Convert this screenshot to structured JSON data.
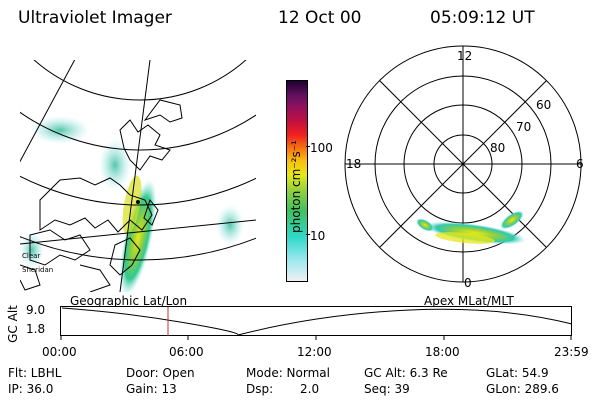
{
  "header": {
    "instrument": "Ultraviolet Imager",
    "date": "12 Oct 00",
    "time": "05:09:12 UT"
  },
  "colorbar": {
    "unit_label": "photon cm⁻²s⁻¹",
    "ticks": [
      "100",
      "10"
    ],
    "scale": "log",
    "colors": [
      "#f0f0f0",
      "#a0e8f0",
      "#30d8c8",
      "#40c060",
      "#90d040",
      "#e8e818",
      "#f8c010",
      "#f87810",
      "#f02020",
      "#c01040",
      "#901060",
      "#601060",
      "#200030"
    ]
  },
  "polar_plot": {
    "mlt_labels": [
      "12",
      "18",
      "6",
      "0"
    ],
    "lat_labels": [
      "60",
      "70",
      "80"
    ]
  },
  "geo_map": {
    "labels": [
      "Clear",
      "Sheridan"
    ]
  },
  "gc_alt_strip": {
    "ylabel": "GC Alt",
    "yticks": [
      "9.0",
      "1.8"
    ],
    "left_title": "Geographic Lat/Lon",
    "right_title": "Apex MLat/MLT",
    "xticks": [
      "00:00",
      "06:00",
      "12:00",
      "18:00",
      "23:59"
    ]
  },
  "status": {
    "filter": "Flt: LBHL",
    "ip": "IP: 36.0",
    "door": "Door: Open",
    "gain": "Gain: 13",
    "mode": "Mode: Normal",
    "dsp_label": "Dsp:",
    "dsp_value": "2.0",
    "gc_alt": "GC Alt: 6.3 Re",
    "seq": "Seq: 39",
    "glat": "GLat:  54.9",
    "glon": "GLon: 289.6"
  }
}
